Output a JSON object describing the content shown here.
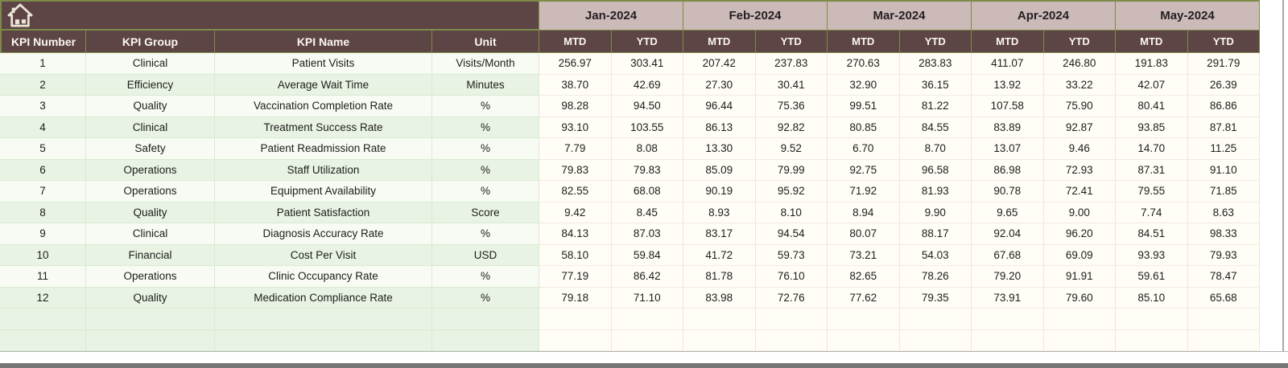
{
  "table": {
    "left_headers": [
      "KPI Number",
      "KPI Group",
      "KPI Name",
      "Unit"
    ],
    "months": [
      "Jan-2024",
      "Feb-2024",
      "Mar-2024",
      "Apr-2024",
      "May-2024"
    ],
    "sub_headers": [
      "MTD",
      "YTD"
    ],
    "rows": [
      {
        "number": "1",
        "group": "Clinical",
        "name": "Patient Visits",
        "unit": "Visits/Month",
        "values": [
          "256.97",
          "303.41",
          "207.42",
          "237.83",
          "270.63",
          "283.83",
          "411.07",
          "246.80",
          "191.83",
          "291.79"
        ]
      },
      {
        "number": "2",
        "group": "Efficiency",
        "name": "Average Wait Time",
        "unit": "Minutes",
        "values": [
          "38.70",
          "42.69",
          "27.30",
          "30.41",
          "32.90",
          "36.15",
          "13.92",
          "33.22",
          "42.07",
          "26.39"
        ]
      },
      {
        "number": "3",
        "group": "Quality",
        "name": "Vaccination Completion Rate",
        "unit": "%",
        "values": [
          "98.28",
          "94.50",
          "96.44",
          "75.36",
          "99.51",
          "81.22",
          "107.58",
          "75.90",
          "80.41",
          "86.86"
        ]
      },
      {
        "number": "4",
        "group": "Clinical",
        "name": "Treatment Success Rate",
        "unit": "%",
        "values": [
          "93.10",
          "103.55",
          "86.13",
          "92.82",
          "80.85",
          "84.55",
          "83.89",
          "92.87",
          "93.85",
          "87.81"
        ]
      },
      {
        "number": "5",
        "group": "Safety",
        "name": "Patient Readmission Rate",
        "unit": "%",
        "values": [
          "7.79",
          "8.08",
          "13.30",
          "9.52",
          "6.70",
          "8.70",
          "13.07",
          "9.46",
          "14.70",
          "11.25"
        ]
      },
      {
        "number": "6",
        "group": "Operations",
        "name": "Staff Utilization",
        "unit": "%",
        "values": [
          "79.83",
          "79.83",
          "85.09",
          "79.99",
          "92.75",
          "96.58",
          "86.98",
          "72.93",
          "87.31",
          "91.10"
        ]
      },
      {
        "number": "7",
        "group": "Operations",
        "name": "Equipment Availability",
        "unit": "%",
        "values": [
          "82.55",
          "68.08",
          "90.19",
          "95.92",
          "71.92",
          "81.93",
          "90.78",
          "72.41",
          "79.55",
          "71.85"
        ]
      },
      {
        "number": "8",
        "group": "Quality",
        "name": "Patient Satisfaction",
        "unit": "Score",
        "values": [
          "9.42",
          "8.45",
          "8.93",
          "8.10",
          "8.94",
          "9.90",
          "9.65",
          "9.00",
          "7.74",
          "8.63"
        ]
      },
      {
        "number": "9",
        "group": "Clinical",
        "name": "Diagnosis Accuracy Rate",
        "unit": "%",
        "values": [
          "84.13",
          "87.03",
          "83.17",
          "94.54",
          "80.07",
          "88.17",
          "92.04",
          "96.20",
          "84.51",
          "98.33"
        ]
      },
      {
        "number": "10",
        "group": "Financial",
        "name": "Cost Per Visit",
        "unit": "USD",
        "values": [
          "58.10",
          "59.84",
          "41.72",
          "59.73",
          "73.21",
          "54.03",
          "67.68",
          "69.09",
          "93.93",
          "79.93"
        ]
      },
      {
        "number": "11",
        "group": "Operations",
        "name": "Clinic Occupancy Rate",
        "unit": "%",
        "values": [
          "77.19",
          "86.42",
          "81.78",
          "76.10",
          "82.65",
          "78.26",
          "79.20",
          "91.91",
          "59.61",
          "78.47"
        ]
      },
      {
        "number": "12",
        "group": "Quality",
        "name": "Medication Compliance Rate",
        "unit": "%",
        "values": [
          "79.18",
          "71.10",
          "83.98",
          "72.76",
          "77.62",
          "79.35",
          "73.91",
          "79.60",
          "85.10",
          "65.68"
        ]
      }
    ],
    "empty_row_count": 2
  },
  "icons": {
    "home": "home-icon"
  },
  "colors": {
    "header_brown": "#5d4545",
    "header_pink": "#cbbab8",
    "grid_olive": "#7d8b49",
    "row_light": "#f7fbf3",
    "row_green": "#e9f3e3",
    "val_bg": "#fffdf6",
    "val_grid": "#efe7d8",
    "text_dark": "#1d1d1b",
    "header_text": "#fbf7f1",
    "month_text": "#241f22",
    "bottom_bar": "#767676",
    "icon_cream": "#ece4d6"
  }
}
